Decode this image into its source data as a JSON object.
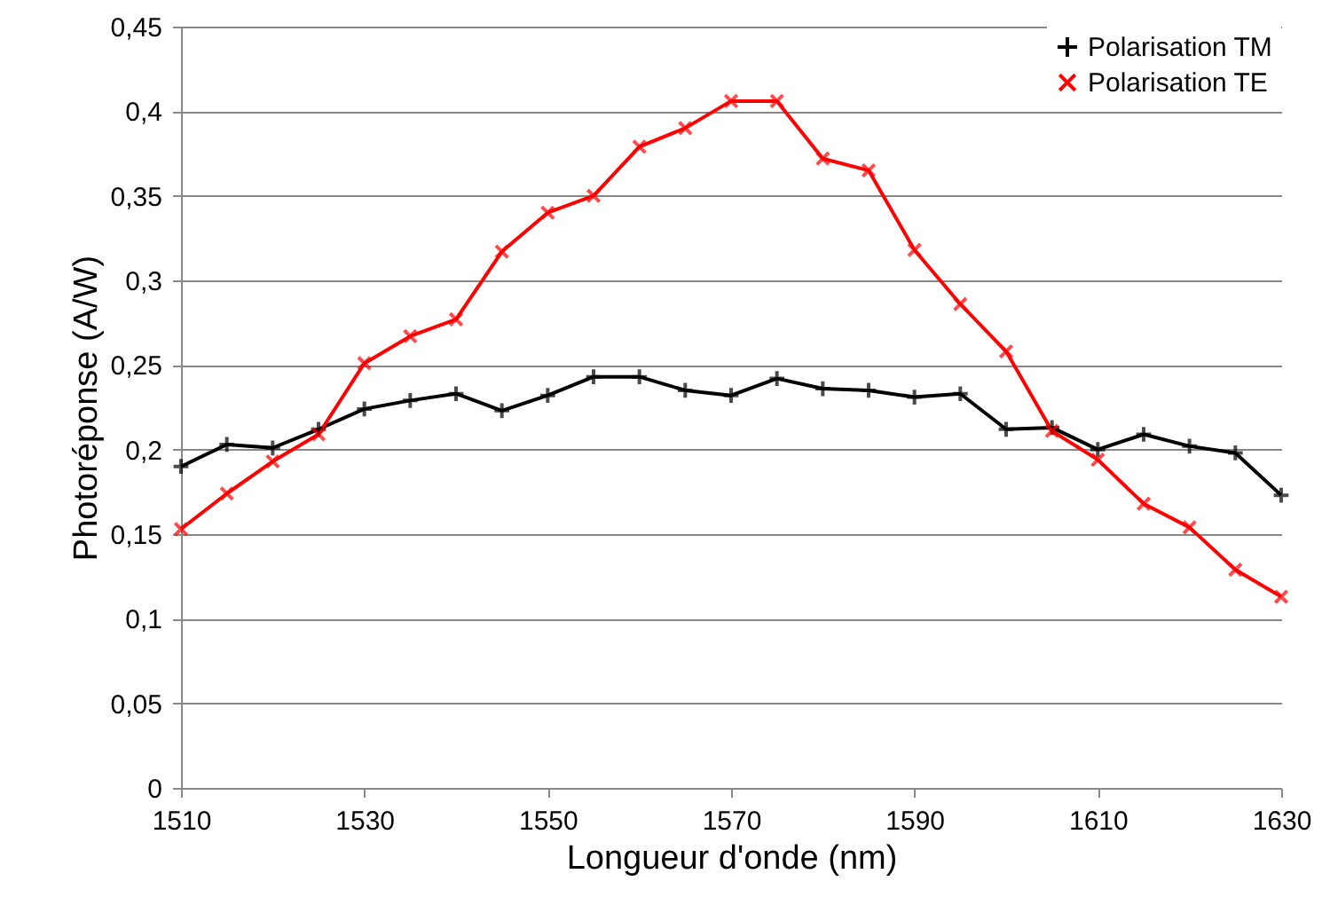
{
  "chart_data": {
    "type": "line",
    "xlabel": "Longueur d'onde (nm)",
    "ylabel": "Photoréponse (A/W)",
    "x": [
      1510,
      1515,
      1520,
      1525,
      1530,
      1535,
      1540,
      1545,
      1550,
      1555,
      1560,
      1565,
      1570,
      1575,
      1580,
      1585,
      1590,
      1595,
      1600,
      1605,
      1610,
      1615,
      1620,
      1625,
      1630
    ],
    "series": [
      {
        "name": "Polarisation TM",
        "color": "#000000",
        "marker": "cross",
        "values": [
          0.19,
          0.203,
          0.201,
          0.212,
          0.224,
          0.229,
          0.233,
          0.223,
          0.232,
          0.243,
          0.243,
          0.235,
          0.232,
          0.242,
          0.236,
          0.235,
          0.231,
          0.233,
          0.212,
          0.213,
          0.2,
          0.209,
          0.202,
          0.198,
          0.173
        ]
      },
      {
        "name": "Polarisation TE",
        "color": "#ff0000",
        "marker": "x",
        "values": [
          0.153,
          0.174,
          0.193,
          0.209,
          0.251,
          0.267,
          0.277,
          0.317,
          0.34,
          0.35,
          0.379,
          0.39,
          0.406,
          0.406,
          0.372,
          0.365,
          0.318,
          0.286,
          0.258,
          0.211,
          0.194,
          0.168,
          0.154,
          0.129,
          0.113
        ]
      }
    ],
    "xlim": [
      1510,
      1630
    ],
    "xticks": [
      1510,
      1530,
      1550,
      1570,
      1590,
      1610,
      1630
    ],
    "ylim": [
      0,
      0.45
    ],
    "yticks": [
      0,
      {
        "value": 0.05,
        "label": "0,05"
      },
      {
        "value": 0.1,
        "label": "0,1"
      },
      {
        "value": 0.15,
        "label": "0,15"
      },
      {
        "value": 0.2,
        "label": "0,2"
      },
      {
        "value": 0.25,
        "label": "0,25"
      },
      {
        "value": 0.3,
        "label": "0,3"
      },
      {
        "value": 0.35,
        "label": "0,35"
      },
      {
        "value": 0.4,
        "label": "0,4"
      },
      {
        "value": 0.45,
        "label": "0,45"
      }
    ],
    "grid": "y",
    "legend": "top right",
    "line_style": "solid"
  }
}
